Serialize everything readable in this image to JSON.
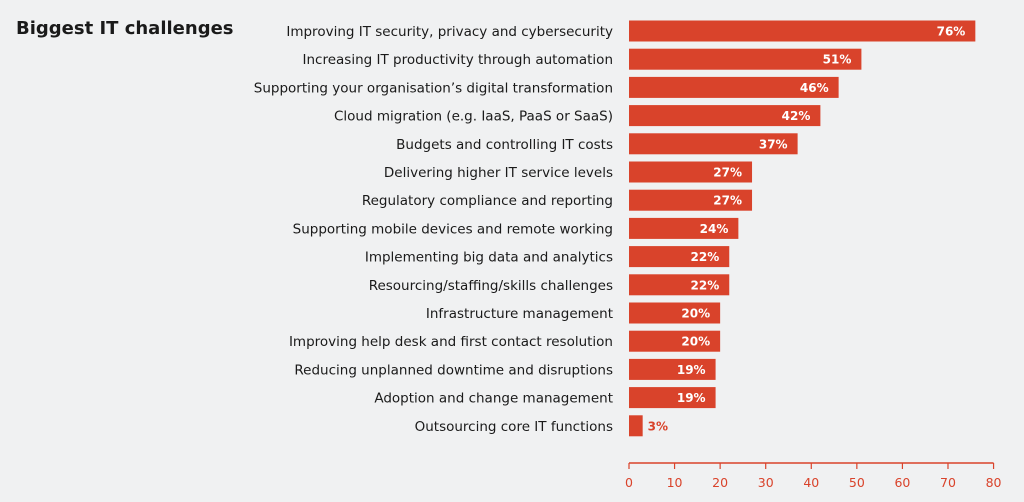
{
  "chart_data": {
    "type": "bar",
    "orientation": "horizontal",
    "title": "Biggest IT challenges",
    "categories": [
      "Improving IT security, privacy and cybersecurity",
      "Increasing IT productivity through automation",
      "Supporting your organisation’s digital transformation",
      "Cloud migration (e.g. IaaS, PaaS or SaaS)",
      "Budgets and controlling IT costs",
      "Delivering higher IT service levels",
      "Regulatory compliance and reporting",
      "Supporting mobile devices and remote working",
      "Implementing big data and analytics",
      "Resourcing/staffing/skills challenges",
      "Infrastructure management",
      "Improving help desk and first contact resolution",
      "Reducing unplanned downtime and disruptions",
      "Adoption and change management",
      "Outsourcing core IT functions"
    ],
    "values": [
      76,
      51,
      46,
      42,
      37,
      27,
      27,
      24,
      22,
      22,
      20,
      20,
      19,
      19,
      3
    ],
    "value_labels": [
      "76%",
      "51%",
      "46%",
      "42%",
      "37%",
      "27%",
      "27%",
      "24%",
      "22%",
      "22%",
      "20%",
      "20%",
      "19%",
      "19%",
      "3%"
    ],
    "xlim": [
      0,
      80
    ],
    "xticks": [
      0,
      10,
      20,
      30,
      40,
      50,
      60,
      70,
      80
    ],
    "grid": false,
    "bar_color": "#d9432b",
    "axis_color": "#d9432b"
  }
}
